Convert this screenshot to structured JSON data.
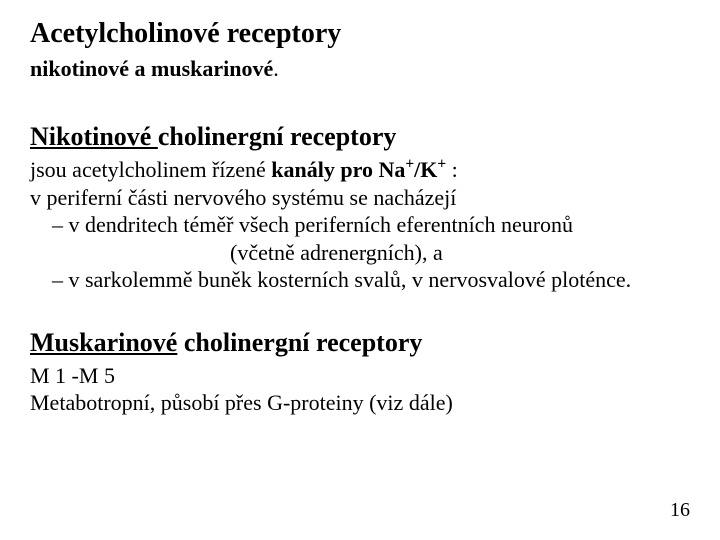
{
  "title": "Acetylcholinové receptory",
  "subtitle_prefix": "nikotinové a muskarinové",
  "period": ".",
  "nikotin_heading_u": "Nikotinové ",
  "nikotin_heading_rest": "cholinergní receptory",
  "nikotin_line1_pre": "jsou acetylcholinem řízené ",
  "nikotin_line1_bold_a": "kanály pro Na",
  "plus": "+",
  "slash_k": "/K",
  "colon_space": " :",
  "nikotin_line2": "v periferní části nervového systému se nacházejí",
  "nikotin_bullet1": "– v dendritech téměř všech periferních eferentních neuronů",
  "nikotin_bullet1b": "(včetně adrenergních), a",
  "nikotin_bullet2": "– v sarkolemmě buněk kosterních svalů, v nervosvalové ploténce.",
  "muskarin_heading_u": "Muskarinové",
  "muskarin_heading_rest": " cholinergní receptory",
  "muskarin_line1": "M 1 -M 5",
  "muskarin_line2": "Metabotropní, působí přes G-proteiny (viz dále)",
  "page_number": "16"
}
